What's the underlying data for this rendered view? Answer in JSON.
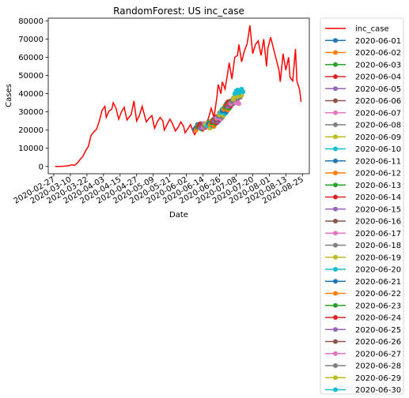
{
  "chart_data": {
    "type": "line",
    "title": "RandomForest: US inc_case",
    "xlabel": "Date",
    "ylabel": "Cases",
    "xlim": [
      "2020-02-23",
      "2020-08-30"
    ],
    "ylim": [
      -4000,
      81500
    ],
    "x_ticks": [
      "2020-02-27",
      "2020-03-10",
      "2020-03-22",
      "2020-04-03",
      "2020-04-15",
      "2020-04-27",
      "2020-05-09",
      "2020-05-21",
      "2020-06-02",
      "2020-06-14",
      "2020-06-26",
      "2020-07-08",
      "2020-07-20",
      "2020-08-01",
      "2020-08-13",
      "2020-08-25"
    ],
    "y_ticks": [
      0,
      10000,
      20000,
      30000,
      40000,
      50000,
      60000,
      70000,
      80000
    ],
    "y_tick_labels": [
      "0",
      "10000",
      "20000",
      "30000",
      "40000",
      "50000",
      "60000",
      "70000",
      "80000"
    ],
    "grid": false,
    "legend_position": "outside-right",
    "actual": {
      "name": "inc_case",
      "color": "#ff0000",
      "points": [
        [
          "2020-02-28",
          0
        ],
        [
          "2020-03-04",
          100
        ],
        [
          "2020-03-09",
          400
        ],
        [
          "2020-03-11",
          900
        ],
        [
          "2020-03-13",
          600
        ],
        [
          "2020-03-15",
          1800
        ],
        [
          "2020-03-17",
          3800
        ],
        [
          "2020-03-19",
          5500
        ],
        [
          "2020-03-21",
          8500
        ],
        [
          "2020-03-23",
          11000
        ],
        [
          "2020-03-25",
          17000
        ],
        [
          "2020-03-27",
          19000
        ],
        [
          "2020-03-29",
          20500
        ],
        [
          "2020-03-31",
          25000
        ],
        [
          "2020-04-02",
          31000
        ],
        [
          "2020-04-04",
          33000
        ],
        [
          "2020-04-05",
          27000
        ],
        [
          "2020-04-07",
          30500
        ],
        [
          "2020-04-09",
          31500
        ],
        [
          "2020-04-10",
          35000
        ],
        [
          "2020-04-12",
          32000
        ],
        [
          "2020-04-14",
          26000
        ],
        [
          "2020-04-16",
          30000
        ],
        [
          "2020-04-18",
          32500
        ],
        [
          "2020-04-20",
          25500
        ],
        [
          "2020-04-23",
          28500
        ],
        [
          "2020-04-25",
          36000
        ],
        [
          "2020-04-27",
          25000
        ],
        [
          "2020-04-29",
          28000
        ],
        [
          "2020-05-01",
          33000
        ],
        [
          "2020-05-02",
          30000
        ],
        [
          "2020-05-04",
          24500
        ],
        [
          "2020-05-06",
          26500
        ],
        [
          "2020-05-08",
          28000
        ],
        [
          "2020-05-10",
          21000
        ],
        [
          "2020-05-12",
          24500
        ],
        [
          "2020-05-14",
          27000
        ],
        [
          "2020-05-16",
          25000
        ],
        [
          "2020-05-17",
          20000
        ],
        [
          "2020-05-19",
          23000
        ],
        [
          "2020-05-21",
          26000
        ],
        [
          "2020-05-23",
          23500
        ],
        [
          "2020-05-25",
          19500
        ],
        [
          "2020-05-27",
          21500
        ],
        [
          "2020-05-29",
          24500
        ],
        [
          "2020-05-31",
          22000
        ],
        [
          "2020-06-01",
          18500
        ],
        [
          "2020-06-03",
          20500
        ],
        [
          "2020-06-05",
          23000
        ],
        [
          "2020-06-07",
          19000
        ],
        [
          "2020-06-08",
          17500
        ],
        [
          "2020-06-10",
          20500
        ],
        [
          "2020-06-12",
          24000
        ],
        [
          "2020-06-14",
          19500
        ],
        [
          "2020-06-16",
          22500
        ],
        [
          "2020-06-18",
          26500
        ],
        [
          "2020-06-20",
          32000
        ],
        [
          "2020-06-22",
          27000
        ],
        [
          "2020-06-24",
          37500
        ],
        [
          "2020-06-25",
          45000
        ],
        [
          "2020-06-27",
          40000
        ],
        [
          "2020-06-28",
          46500
        ],
        [
          "2020-06-30",
          42500
        ],
        [
          "2020-07-02",
          52000
        ],
        [
          "2020-07-03",
          57000
        ],
        [
          "2020-07-05",
          48000
        ],
        [
          "2020-07-07",
          60000
        ],
        [
          "2020-07-09",
          61000
        ],
        [
          "2020-07-10",
          67000
        ],
        [
          "2020-07-12",
          57500
        ],
        [
          "2020-07-14",
          63500
        ],
        [
          "2020-07-16",
          67500
        ],
        [
          "2020-07-18",
          77500
        ],
        [
          "2020-07-20",
          62000
        ],
        [
          "2020-07-22",
          67000
        ],
        [
          "2020-07-24",
          69000
        ],
        [
          "2020-07-26",
          61000
        ],
        [
          "2020-07-28",
          70000
        ],
        [
          "2020-07-30",
          55000
        ],
        [
          "2020-07-31",
          65000
        ],
        [
          "2020-08-02",
          71000
        ],
        [
          "2020-08-04",
          65000
        ],
        [
          "2020-08-06",
          59000
        ],
        [
          "2020-08-08",
          53000
        ],
        [
          "2020-08-09",
          46500
        ],
        [
          "2020-08-11",
          62000
        ],
        [
          "2020-08-13",
          53000
        ],
        [
          "2020-08-15",
          60000
        ],
        [
          "2020-08-16",
          49000
        ],
        [
          "2020-08-18",
          47000
        ],
        [
          "2020-08-20",
          64500
        ],
        [
          "2020-08-21",
          47000
        ],
        [
          "2020-08-23",
          42000
        ],
        [
          "2020-08-24",
          35500
        ]
      ]
    },
    "forecast_series": [
      {
        "name": "2020-06-01",
        "color": "#1f77b4",
        "values": [
          20500,
          21500,
          23000,
          22000,
          21000,
          21500,
          23000
        ]
      },
      {
        "name": "2020-06-02",
        "color": "#ff7f0e",
        "values": [
          20000,
          22000,
          22500,
          21500,
          20500,
          22000,
          23500
        ]
      },
      {
        "name": "2020-06-03",
        "color": "#2ca02c",
        "values": [
          21500,
          22500,
          21000,
          20500,
          22000,
          23000,
          22500
        ]
      },
      {
        "name": "2020-06-04",
        "color": "#d62728",
        "values": [
          22000,
          23500,
          22000,
          21000,
          22500,
          23500,
          23000
        ]
      },
      {
        "name": "2020-06-05",
        "color": "#9467bd",
        "values": [
          21000,
          22500,
          23500,
          22000,
          21500,
          23000,
          24000
        ]
      },
      {
        "name": "2020-06-06",
        "color": "#8c564b",
        "values": [
          22500,
          23000,
          22000,
          21500,
          23500,
          24500,
          23000
        ]
      },
      {
        "name": "2020-06-07",
        "color": "#e377c2",
        "values": [
          21500,
          23500,
          22500,
          22000,
          22500,
          24000,
          23500
        ]
      },
      {
        "name": "2020-06-08",
        "color": "#7f7f7f",
        "values": [
          22000,
          23000,
          24000,
          22500,
          21500,
          23500,
          24500
        ]
      },
      {
        "name": "2020-06-09",
        "color": "#bcbd22",
        "values": [
          23000,
          24000,
          22500,
          21000,
          22500,
          24500,
          25000
        ]
      },
      {
        "name": "2020-06-10",
        "color": "#17becf",
        "values": [
          22500,
          23500,
          24500,
          23000,
          22000,
          24000,
          25500
        ]
      },
      {
        "name": "2020-06-11",
        "color": "#1f77b4",
        "values": [
          23500,
          24500,
          23000,
          22500,
          24000,
          25000,
          24000
        ]
      },
      {
        "name": "2020-06-12",
        "color": "#ff7f0e",
        "values": [
          23000,
          25000,
          24000,
          22000,
          23500,
          26000,
          25500
        ]
      },
      {
        "name": "2020-06-13",
        "color": "#2ca02c",
        "values": [
          24000,
          25500,
          24500,
          23500,
          25000,
          26500,
          26000
        ]
      },
      {
        "name": "2020-06-14",
        "color": "#d62728",
        "values": [
          24500,
          26000,
          25000,
          24000,
          25500,
          27000,
          27500
        ]
      },
      {
        "name": "2020-06-15",
        "color": "#9467bd",
        "values": [
          25000,
          26500,
          26000,
          24500,
          26000,
          28000,
          27500
        ]
      },
      {
        "name": "2020-06-16",
        "color": "#8c564b",
        "values": [
          25500,
          27500,
          26500,
          25500,
          27000,
          29000,
          28500
        ]
      },
      {
        "name": "2020-06-17",
        "color": "#e377c2",
        "values": [
          26500,
          28000,
          27500,
          26000,
          28000,
          30000,
          29500
        ]
      },
      {
        "name": "2020-06-18",
        "color": "#7f7f7f",
        "values": [
          27500,
          29500,
          28500,
          27000,
          29000,
          31000,
          30500
        ]
      },
      {
        "name": "2020-06-19",
        "color": "#bcbd22",
        "values": [
          28500,
          30500,
          29500,
          28000,
          30500,
          32000,
          31500
        ]
      },
      {
        "name": "2020-06-20",
        "color": "#17becf",
        "values": [
          29500,
          31500,
          30500,
          29000,
          31500,
          33000,
          32500
        ]
      },
      {
        "name": "2020-06-21",
        "color": "#1f77b4",
        "values": [
          30500,
          32000,
          31500,
          30000,
          32500,
          34000,
          33000
        ]
      },
      {
        "name": "2020-06-22",
        "color": "#ff7f0e",
        "values": [
          31500,
          33500,
          32500,
          31000,
          33500,
          35000,
          34500
        ]
      },
      {
        "name": "2020-06-23",
        "color": "#2ca02c",
        "values": [
          32500,
          34500,
          33500,
          32000,
          34000,
          36000,
          35000
        ]
      },
      {
        "name": "2020-06-24",
        "color": "#d62728",
        "values": [
          33500,
          35500,
          34500,
          33000,
          35000,
          37000,
          36000
        ]
      },
      {
        "name": "2020-06-25",
        "color": "#9467bd",
        "values": [
          33000,
          34500,
          35500,
          34000,
          35500,
          36500,
          35000
        ]
      },
      {
        "name": "2020-06-26",
        "color": "#8c564b",
        "values": [
          34000,
          36000,
          35000,
          34500,
          36500,
          37000,
          36000
        ]
      },
      {
        "name": "2020-06-27",
        "color": "#e377c2",
        "values": [
          34500,
          35500,
          36000,
          35000,
          36000,
          35500,
          34500
        ]
      },
      {
        "name": "2020-06-28",
        "color": "#7f7f7f",
        "values": [
          35500,
          37500,
          38000,
          37000,
          37500,
          38500,
          38000
        ]
      },
      {
        "name": "2020-06-29",
        "color": "#bcbd22",
        "values": [
          37000,
          38500,
          39000,
          38500,
          39500,
          40000,
          39000
        ]
      },
      {
        "name": "2020-06-30",
        "color": "#17becf",
        "values": [
          40000,
          41500,
          42000,
          40500,
          41000,
          42500,
          41000
        ]
      }
    ]
  }
}
